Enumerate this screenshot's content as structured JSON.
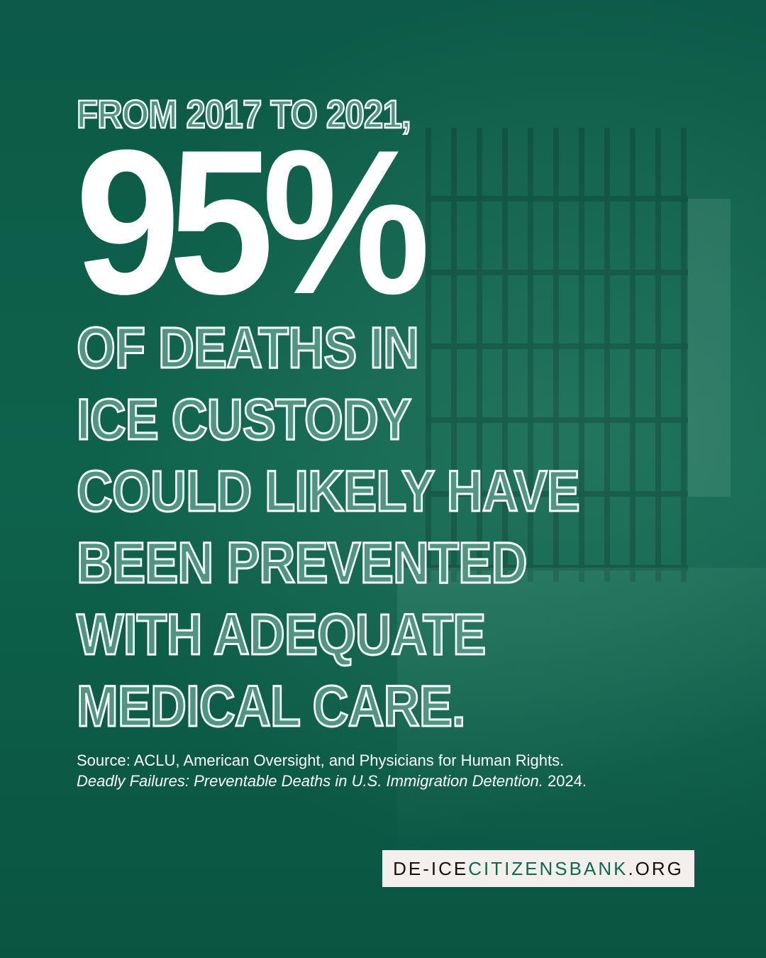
{
  "headline": {
    "intro": "FROM 2017 TO 2021,",
    "stat": "95%",
    "lines": [
      "OF DEATHS IN",
      "ICE CUSTODY",
      "COULD LIKELY HAVE",
      "BEEN PREVENTED",
      "WITH ADEQUATE",
      "MEDICAL CARE."
    ]
  },
  "source": {
    "line1": "Source: ACLU, American Oversight, and Physicians for Human Rights.",
    "title_italic": "Deadly Failures: Preventable Deaths in U.S. Immigration Detention.",
    "year": " 2024."
  },
  "badge": {
    "part1": "DE-ICE",
    "part2": "CITIZENSBANK",
    "part3": ".ORG"
  },
  "colors": {
    "background": "#0b5a46",
    "badge_bg": "#f4efec",
    "accent": "#0b6a50"
  }
}
